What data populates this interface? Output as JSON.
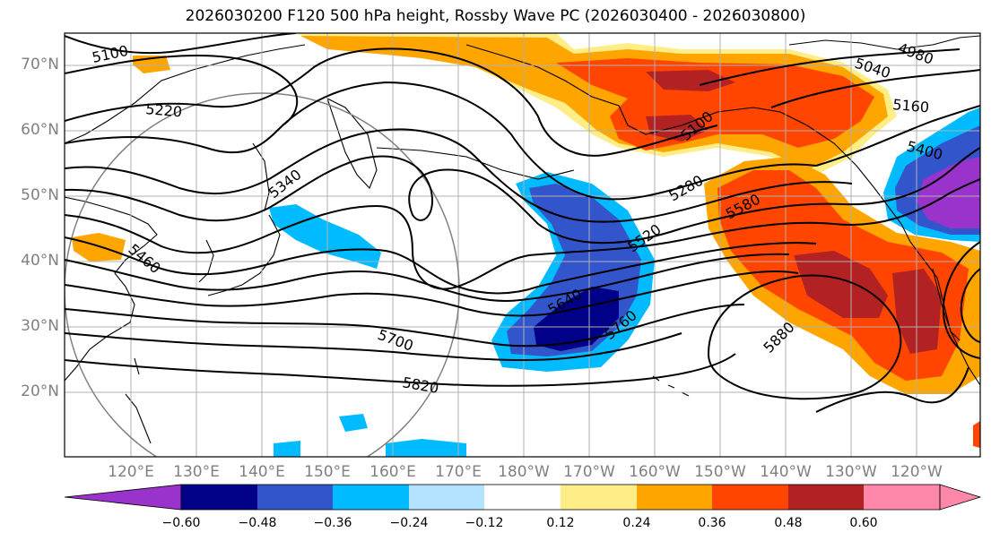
{
  "title": "2026030200 F120 500 hPa height, Rossby Wave PC (2026030400 - 2026030800)",
  "map": {
    "projection": "plate-carree",
    "lon_range": [
      110,
      -112
    ],
    "lat_range": [
      10,
      75
    ],
    "lat_labels": [
      "70°N",
      "60°N",
      "50°N",
      "40°N",
      "30°N",
      "20°N"
    ],
    "lon_labels": [
      "120°E",
      "130°E",
      "140°E",
      "150°E",
      "160°E",
      "170°E",
      "180°W",
      "170°W",
      "160°W",
      "150°W",
      "140°W",
      "130°W",
      "120°W"
    ],
    "coast_color": "#000000",
    "grid_color": "#b0b0b0",
    "circle_color": "#808080"
  },
  "contours": {
    "color": "#000000",
    "labels": [
      "5100",
      "5220",
      "5340",
      "5460",
      "5640",
      "5700",
      "5820",
      "5280",
      "5520",
      "5760",
      "5580",
      "5880",
      "5100",
      "5040",
      "4980",
      "5160",
      "5400"
    ]
  },
  "colorbar": {
    "colors": [
      "#9933cc",
      "#000088",
      "#3355cc",
      "#00bbff",
      "#b3e3ff",
      "#ffffff",
      "#ffee88",
      "#ffa500",
      "#ff4500",
      "#b22222",
      "#ff88aa"
    ],
    "ticks": [
      "−0.60",
      "−0.48",
      "−0.36",
      "−0.24",
      "−0.12",
      "0.12",
      "0.24",
      "0.36",
      "0.48",
      "0.60"
    ]
  }
}
